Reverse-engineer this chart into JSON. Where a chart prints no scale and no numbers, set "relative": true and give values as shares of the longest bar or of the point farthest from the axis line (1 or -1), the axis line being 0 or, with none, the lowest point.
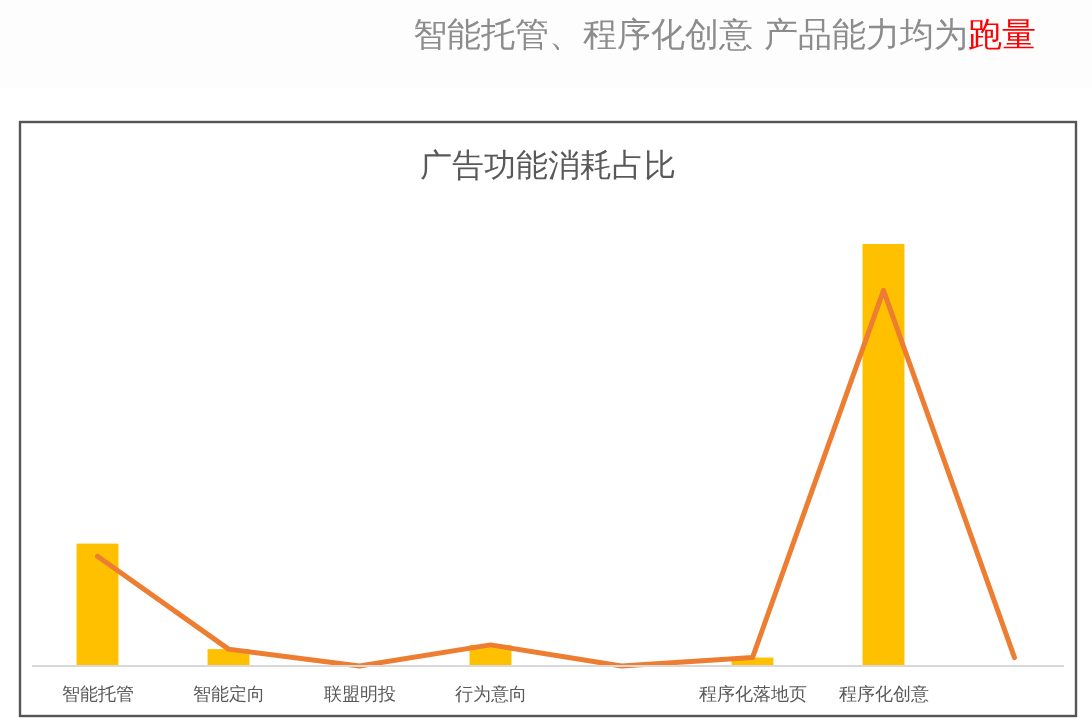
{
  "chart_data": {
    "type": "bar",
    "title": "广告功能消耗占比",
    "annotations": [
      "智能托管、程序化创意 产品能力均为",
      "跑量"
    ],
    "relative": true,
    "categories": [
      "智能托管",
      "智能定向",
      "联盟明投",
      "行为意向",
      null,
      "程序化落地页",
      "程序化创意",
      null
    ],
    "series": [
      {
        "color": "#ffc000",
        "values": [
          0.29,
          0.04,
          0,
          0.05,
          0,
          0.02,
          1,
          0
        ]
      },
      {
        "type": "line",
        "color": "#ed7d31",
        "values": [
          0.26,
          0.04,
          0,
          0.05,
          0,
          0.02,
          0.89,
          0.02
        ]
      }
    ],
    "grid": false
  }
}
